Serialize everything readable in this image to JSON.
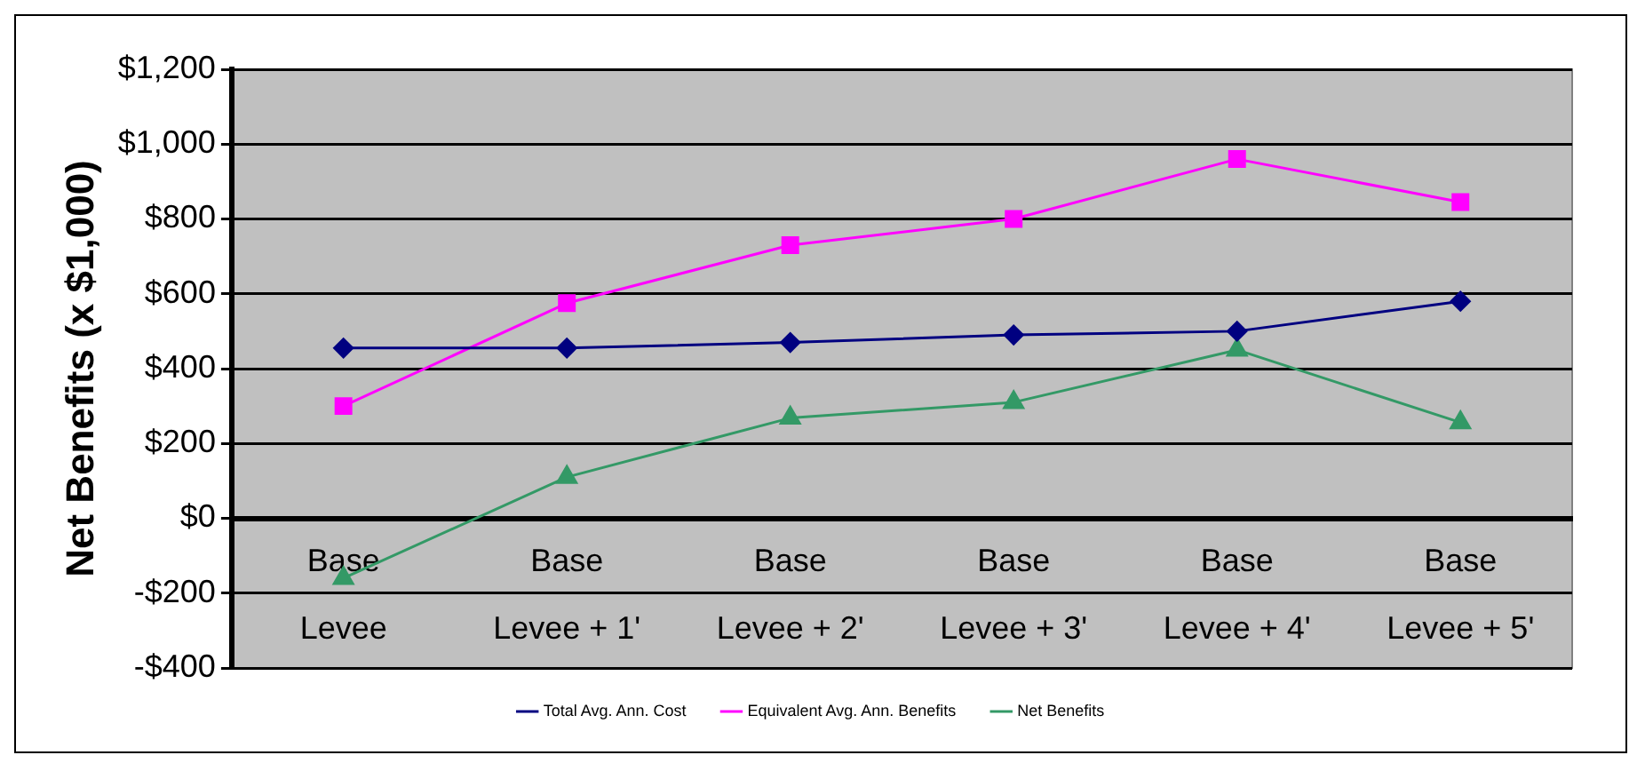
{
  "chart_data": {
    "type": "line",
    "ylabel": "Net Benefits (x $1,000)",
    "categories": [
      "Base Levee",
      "Base Levee + 1'",
      "Base Levee + 2'",
      "Base Levee + 3'",
      "Base Levee + 4'",
      "Base Levee + 5'"
    ],
    "series": [
      {
        "name": "Total Avg. Ann. Cost",
        "color": "#000080",
        "marker": "diamond",
        "values": [
          455,
          455,
          470,
          490,
          500,
          580
        ]
      },
      {
        "name": "Equivalent Avg. Ann. Benefits",
        "color": "#ff00ff",
        "marker": "square",
        "values": [
          300,
          575,
          730,
          800,
          960,
          845
        ]
      },
      {
        "name": "Net Benefits",
        "color": "#339966",
        "marker": "triangle",
        "values": [
          -160,
          110,
          268,
          310,
          450,
          256
        ]
      }
    ],
    "ylim": [
      -400,
      1200
    ],
    "yticks": [
      {
        "value": -400,
        "label": "-$400"
      },
      {
        "value": -200,
        "label": "-$200"
      },
      {
        "value": 0,
        "label": "$0"
      },
      {
        "value": 200,
        "label": "$200"
      },
      {
        "value": 400,
        "label": "$400"
      },
      {
        "value": 600,
        "label": "$600"
      },
      {
        "value": 800,
        "label": "$800"
      },
      {
        "value": 1000,
        "label": "$1,000"
      },
      {
        "value": 1200,
        "label": "$1,200"
      }
    ],
    "grid": "y",
    "legend": "bottom",
    "line_style": "solid"
  }
}
